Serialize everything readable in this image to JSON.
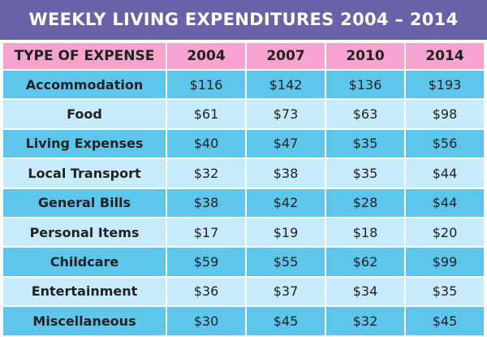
{
  "chart_data": {
    "type": "table",
    "title": "WEEKLY LIVING EXPENDITURES 2004 – 2014",
    "columns": [
      "TYPE OF EXPENSE",
      "2004",
      "2007",
      "2010",
      "2014"
    ],
    "rows": [
      {
        "label": "Accommodation",
        "values": [
          "$116",
          "$142",
          "$136",
          "$193"
        ]
      },
      {
        "label": "Food",
        "values": [
          "$61",
          "$73",
          "$63",
          "$98"
        ]
      },
      {
        "label": "Living Expenses",
        "values": [
          "$40",
          "$47",
          "$35",
          "$56"
        ]
      },
      {
        "label": "Local Transport",
        "values": [
          "$32",
          "$38",
          "$35",
          "$44"
        ]
      },
      {
        "label": "General Bills",
        "values": [
          "$38",
          "$42",
          "$28",
          "$44"
        ]
      },
      {
        "label": "Personal Items",
        "values": [
          "$17",
          "$19",
          "$18",
          "$20"
        ]
      },
      {
        "label": "Childcare",
        "values": [
          "$59",
          "$55",
          "$62",
          "$99"
        ]
      },
      {
        "label": "Entertainment",
        "values": [
          "$36",
          "$37",
          "$34",
          "$35"
        ]
      },
      {
        "label": "Miscellaneous",
        "values": [
          "$30",
          "$45",
          "$32",
          "$45"
        ]
      }
    ]
  },
  "colors": {
    "title_bg": "#6a62a8",
    "header_bg": "#f6a3cf",
    "row_dark": "#5ec6ec",
    "row_light": "#c8ebfb"
  }
}
